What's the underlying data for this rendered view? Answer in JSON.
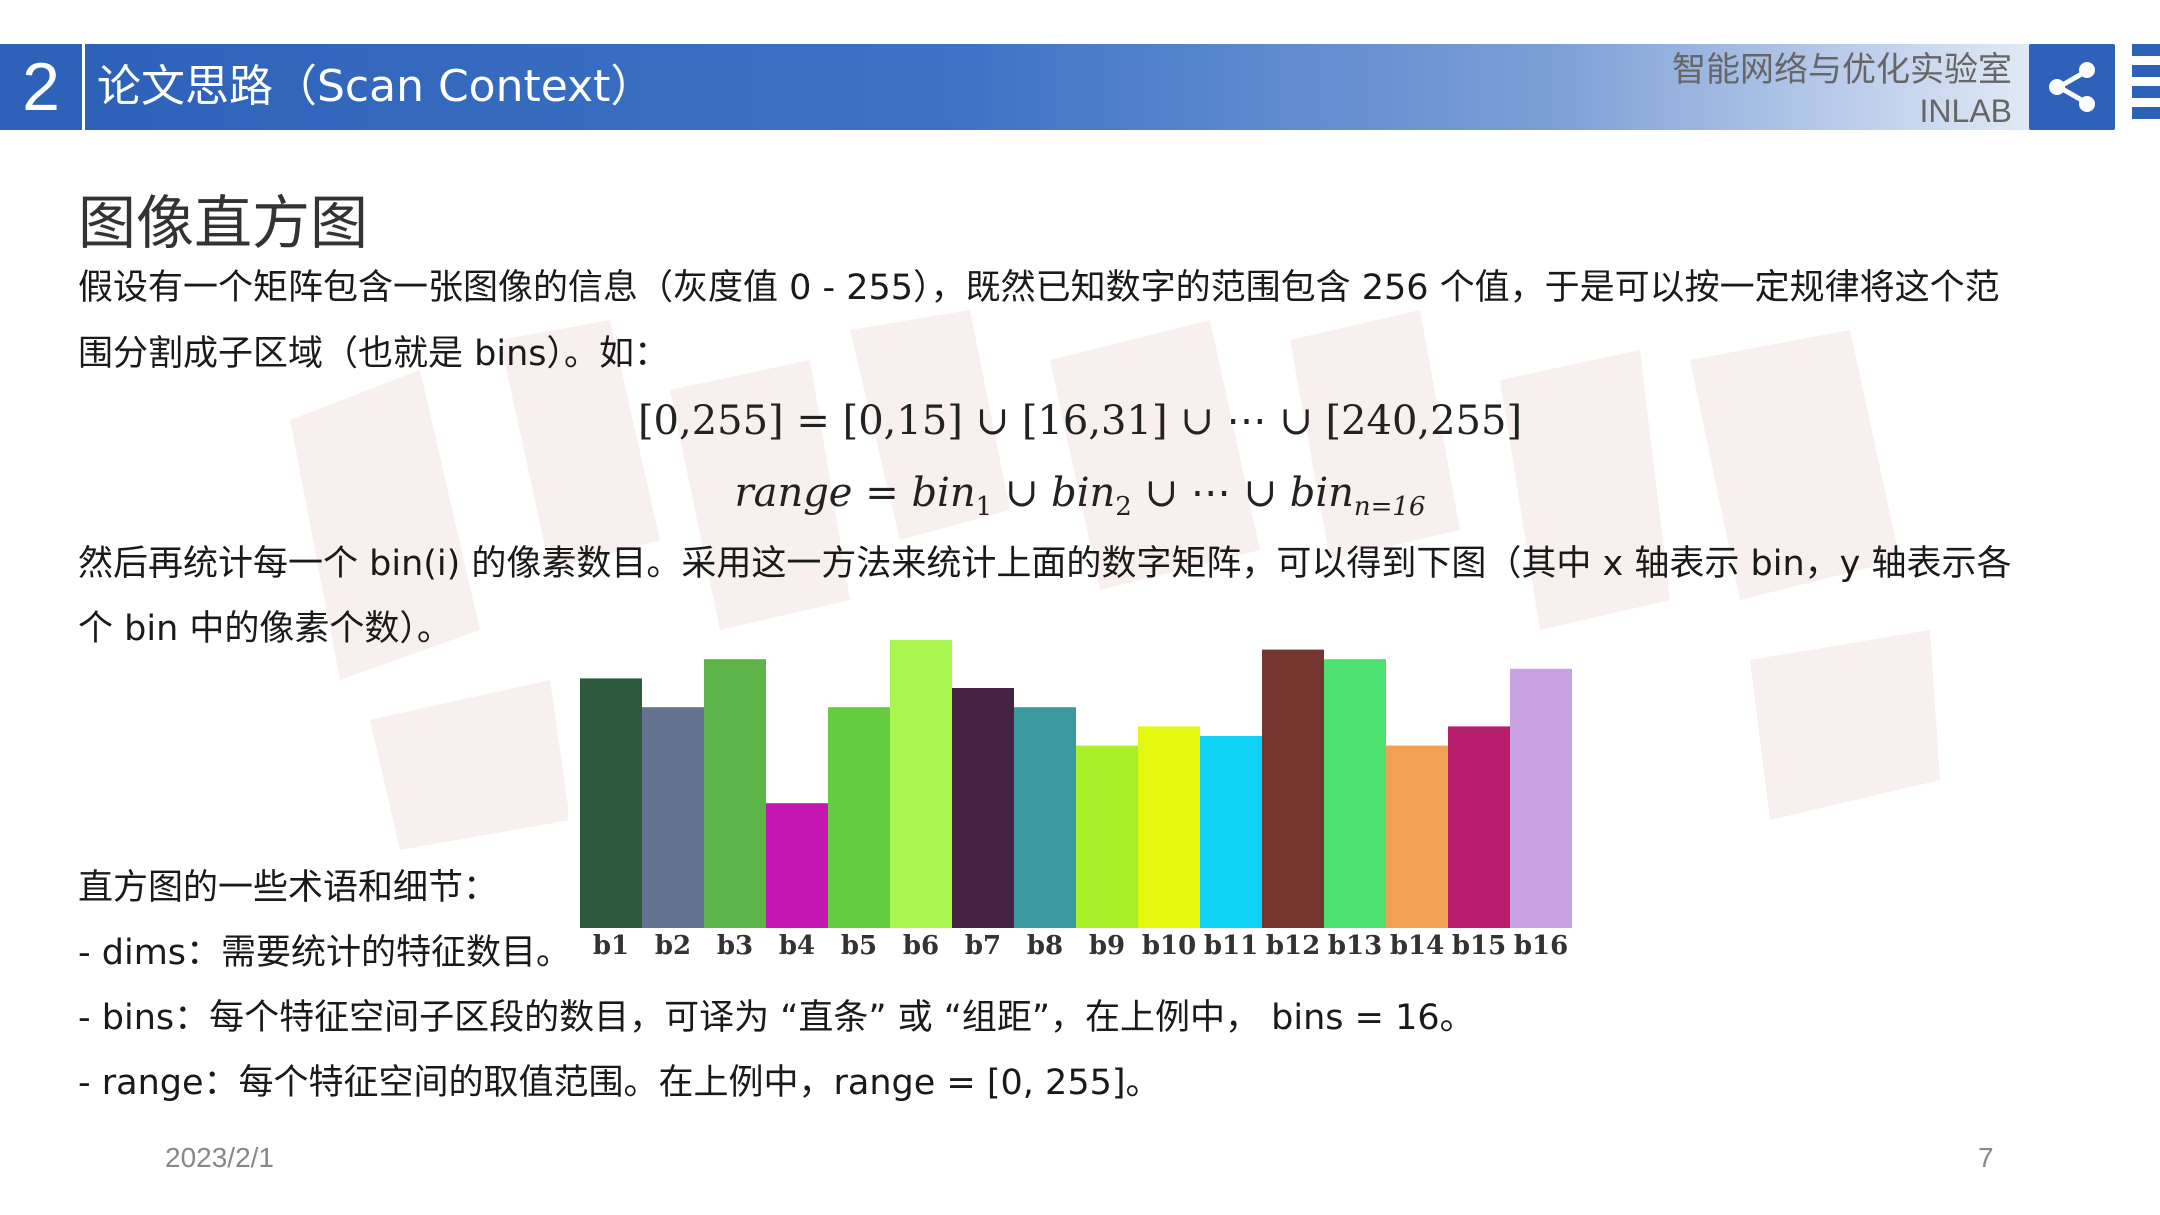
{
  "header": {
    "section_number": "2",
    "section_title": "论文思路（Scan Context）",
    "lab_name": "智能网络与优化实验室",
    "lab_abbr": "INLAB"
  },
  "content": {
    "heading": "图像直方图",
    "para1_line1": "假设有一个矩阵包含一张图像的信息（灰度值 0 - 255），既然已知数字的范围包含 256 个值，于是可以按一定规律将这个范",
    "para1_line2": "围分割成子区域（也就是 bins）。如：",
    "formula1": "[0,255] = [0,15] ∪ [16,31] ∪ ⋯ ∪ [240,255]",
    "formula2_lhs": "range",
    "formula2_bin": "bin",
    "formula2_sub1": "1",
    "formula2_sub2": "2",
    "formula2_subn": "n=16",
    "para2_line1": "然后再统计每一个 bin(i) 的像素数目。采用这一方法来统计上面的数字矩阵，可以得到下图（其中 x 轴表示 bin，y 轴表示各",
    "para2_line2": "个 bin 中的像素个数）。",
    "terms_heading": "直方图的一些术语和细节：",
    "term_dims": "- dims：需要统计的特征数目。",
    "term_bins": "- bins：每个特征空间子区段的数目，可译为 “直条” 或 “组距”，在上例中， bins = 16。",
    "term_range": "- range：每个特征空间的取值范围。在上例中，range = [0, 255]。"
  },
  "footer": {
    "date": "2023/2/1",
    "page": "7"
  },
  "chart_data": {
    "type": "bar",
    "categories": [
      "b1",
      "b2",
      "b3",
      "b4",
      "b5",
      "b6",
      "b7",
      "b8",
      "b9",
      "b10",
      "b11",
      "b12",
      "b13",
      "b14",
      "b15",
      "b16"
    ],
    "values": [
      13,
      11.5,
      14,
      6.5,
      11.5,
      15,
      12.5,
      11.5,
      9.5,
      10.5,
      10,
      14.5,
      14,
      9.5,
      10.5,
      13.5
    ],
    "colors": [
      "#2d5a3c",
      "#647390",
      "#5db54a",
      "#c516b4",
      "#64cc3f",
      "#a8f64f",
      "#452241",
      "#3a9aa0",
      "#a8ef27",
      "#e4f80f",
      "#0fd0f5",
      "#74362e",
      "#4de270",
      "#f4a052",
      "#b81c6c",
      "#c7a1e1"
    ],
    "title": "",
    "xlabel": "",
    "ylabel": "",
    "ylim": [
      0,
      15
    ]
  }
}
